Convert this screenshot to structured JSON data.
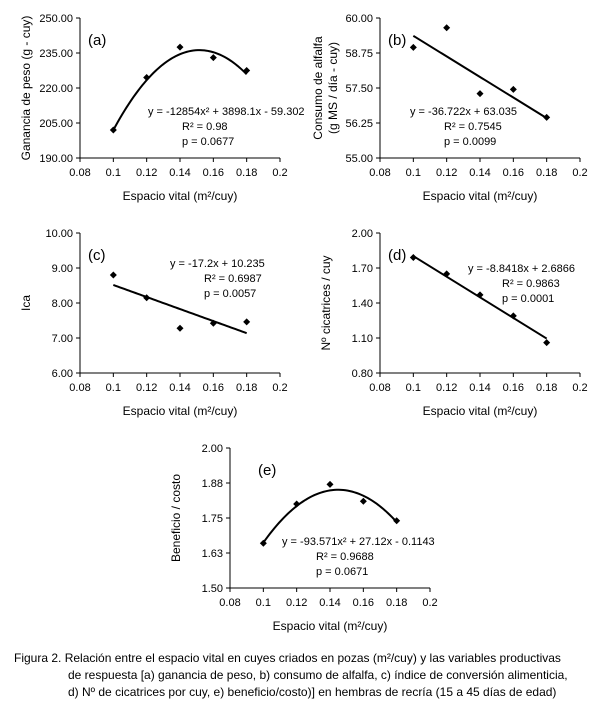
{
  "chart_data": [
    {
      "type": "scatter",
      "panel_label": "(a)",
      "xlabel": "Espacio vital (m²/cuy)",
      "ylabel": [
        "Ganancia de peso (g - cuy)"
      ],
      "xlim": [
        0.08,
        0.2
      ],
      "x_ticks": [
        0.08,
        0.1,
        0.12,
        0.14,
        0.16,
        0.18,
        0.2
      ],
      "x_tick_labels": [
        "0.08",
        "0.1",
        "0.12",
        "0.14",
        "0.16",
        "0.18",
        "0.2"
      ],
      "ylim": [
        190,
        250
      ],
      "y_ticks": [
        190,
        205,
        220,
        235,
        250
      ],
      "y_tick_labels": [
        "190.00",
        "205.00",
        "220.00",
        "235.00",
        "250.00"
      ],
      "points": {
        "x": [
          0.1,
          0.12,
          0.14,
          0.16,
          0.18
        ],
        "y": [
          202.0,
          224.5,
          237.5,
          233.0,
          227.5
        ]
      },
      "fit": {
        "kind": "poly",
        "coef": [
          -12854,
          3898.1,
          -59.302
        ]
      },
      "annotations": [
        "y = -12854x² + 3898.1x - 59.302",
        "R² = 0.98",
        "p = 0.0677"
      ]
    },
    {
      "type": "scatter",
      "panel_label": "(b)",
      "xlabel": "Espacio vital (m²/cuy)",
      "ylabel": [
        "Consumo de alfalfa",
        "(g MS / día - cuy)"
      ],
      "xlim": [
        0.08,
        0.2
      ],
      "x_ticks": [
        0.08,
        0.1,
        0.12,
        0.14,
        0.16,
        0.18,
        0.2
      ],
      "x_tick_labels": [
        "0.08",
        "0.1",
        "0.12",
        "0.14",
        "0.16",
        "0.18",
        "0.2"
      ],
      "ylim": [
        55,
        60
      ],
      "y_ticks": [
        55,
        56.25,
        57.5,
        58.75,
        60
      ],
      "y_tick_labels": [
        "55.00",
        "56.25",
        "57.50",
        "58.75",
        "60.00"
      ],
      "points": {
        "x": [
          0.1,
          0.12,
          0.14,
          0.16,
          0.18
        ],
        "y": [
          58.95,
          59.65,
          57.3,
          57.45,
          56.45
        ]
      },
      "fit": {
        "kind": "poly",
        "coef": [
          -36.722,
          63.035
        ]
      },
      "annotations": [
        "y = -36.722x + 63.035",
        "R² = 0.7545",
        "p = 0.0099"
      ]
    },
    {
      "type": "scatter",
      "panel_label": "(c)",
      "xlabel": "Espacio vital (m²/cuy)",
      "ylabel": [
        "Ica"
      ],
      "xlim": [
        0.08,
        0.2
      ],
      "x_ticks": [
        0.08,
        0.1,
        0.12,
        0.14,
        0.16,
        0.18,
        0.2
      ],
      "x_tick_labels": [
        "0.08",
        "0.1",
        "0.12",
        "0.14",
        "0.16",
        "0.18",
        "0.2"
      ],
      "ylim": [
        6,
        10
      ],
      "y_ticks": [
        6,
        7,
        8,
        9,
        10
      ],
      "y_tick_labels": [
        "6.00",
        "7.00",
        "8.00",
        "9.00",
        "10.00"
      ],
      "points": {
        "x": [
          0.1,
          0.12,
          0.14,
          0.16,
          0.18
        ],
        "y": [
          8.8,
          8.15,
          7.28,
          7.42,
          7.46
        ]
      },
      "fit": {
        "kind": "poly",
        "coef": [
          -17.2,
          10.235
        ]
      },
      "annotations": [
        "y = -17.2x + 10.235",
        "R² = 0.6987",
        "p = 0.0057"
      ]
    },
    {
      "type": "scatter",
      "panel_label": "(d)",
      "xlabel": "Espacio vital (m²/cuy)",
      "ylabel": [
        "Nº cicatrices / cuy"
      ],
      "xlim": [
        0.08,
        0.2
      ],
      "x_ticks": [
        0.08,
        0.1,
        0.12,
        0.14,
        0.16,
        0.18,
        0.2
      ],
      "x_tick_labels": [
        "0.08",
        "0.1",
        "0.12",
        "0.14",
        "0.16",
        "0.18",
        "0.2"
      ],
      "ylim": [
        0.8,
        2.0
      ],
      "y_ticks": [
        0.8,
        1.1,
        1.4,
        1.7,
        2.0
      ],
      "y_tick_labels": [
        "0.80",
        "1.10",
        "1.40",
        "1.70",
        "2.00"
      ],
      "points": {
        "x": [
          0.1,
          0.12,
          0.14,
          0.16,
          0.18
        ],
        "y": [
          1.79,
          1.65,
          1.47,
          1.29,
          1.06
        ]
      },
      "fit": {
        "kind": "poly",
        "coef": [
          -8.8418,
          2.6866
        ]
      },
      "annotations": [
        "y = -8.8418x + 2.6866",
        "R² = 0.9863",
        "p = 0.0001"
      ]
    },
    {
      "type": "scatter",
      "panel_label": "(e)",
      "xlabel": "Espacio vital (m²/cuy)",
      "ylabel": [
        "Beneficio / costo"
      ],
      "xlim": [
        0.08,
        0.2
      ],
      "x_ticks": [
        0.08,
        0.1,
        0.12,
        0.14,
        0.16,
        0.18,
        0.2
      ],
      "x_tick_labels": [
        "0.08",
        "0.1",
        "0.12",
        "0.14",
        "0.16",
        "0.18",
        "0.2"
      ],
      "ylim": [
        1.5,
        2.0
      ],
      "y_ticks": [
        1.5,
        1.625,
        1.75,
        1.875,
        2.0
      ],
      "y_tick_labels": [
        "1.50",
        "1.63",
        "1.75",
        "1.88",
        "2.00"
      ],
      "points": {
        "x": [
          0.1,
          0.12,
          0.14,
          0.16,
          0.18
        ],
        "y": [
          1.66,
          1.8,
          1.87,
          1.81,
          1.74
        ]
      },
      "fit": {
        "kind": "poly",
        "coef": [
          -93.571,
          27.12,
          -0.1143
        ]
      },
      "annotations": [
        "y = -93.571x² + 27.12x - 0.1143",
        "R² = 0.9688",
        "p = 0.0671"
      ]
    }
  ],
  "caption": {
    "lines": [
      "Figura 2. Relación entre el espacio vital en cuyes criados en pozas (m²/cuy) y las variables productivas",
      "de respuesta [a) ganancia de peso, b) consumo de alfalfa, c) índice de conversión alimenticia,",
      "d) Nº de cicatrices por cuy, e) beneficio/costo)] en hembras de recría (15 a 45 días de edad)"
    ]
  },
  "colors": {
    "ink": "#000000",
    "background": "#ffffff"
  }
}
